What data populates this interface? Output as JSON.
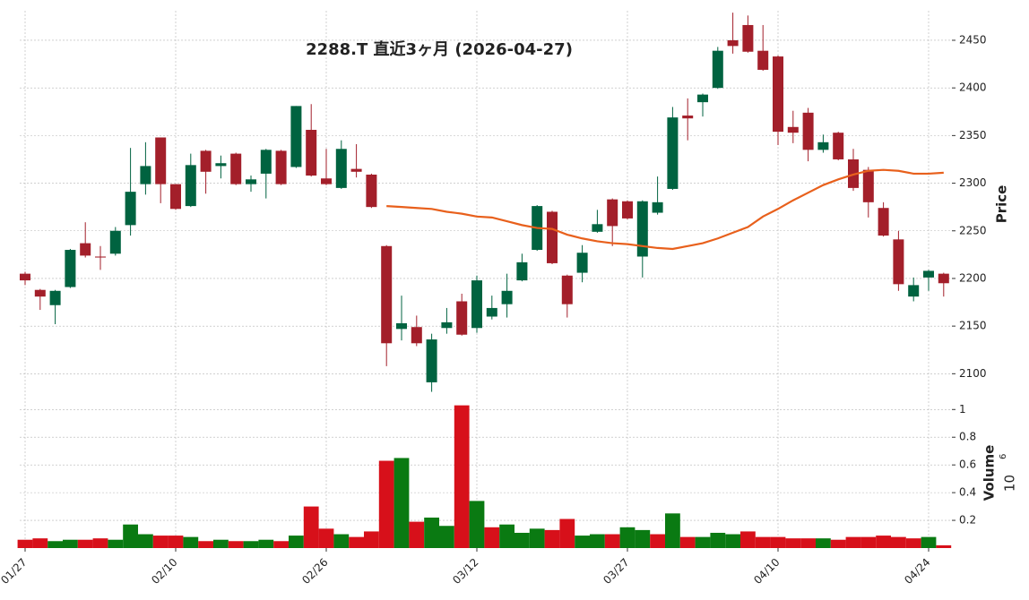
{
  "chart_data": {
    "type": "candlestick",
    "title": "2288.T 直近3ヶ月 (2026-04-27)",
    "categories": [
      "01/27",
      null,
      null,
      null,
      null,
      null,
      null,
      null,
      null,
      null,
      "02/10",
      null,
      null,
      null,
      null,
      null,
      null,
      null,
      null,
      null,
      "02/26",
      null,
      null,
      null,
      null,
      null,
      null,
      null,
      null,
      null,
      "03/12",
      null,
      null,
      null,
      null,
      null,
      null,
      null,
      null,
      null,
      "03/27",
      null,
      null,
      null,
      null,
      null,
      null,
      null,
      null,
      null,
      "04/10",
      null,
      null,
      null,
      null,
      null,
      null,
      null,
      null,
      null,
      "04/24",
      null
    ],
    "open": [
      2205,
      2188,
      2172,
      2191,
      2237,
      2223,
      2226,
      2256,
      2299,
      2348,
      2299,
      2276,
      2334,
      2318,
      2331,
      2299,
      2310,
      2334,
      2317,
      2356,
      2305,
      2295,
      2315,
      2309,
      2234,
      2147,
      2149,
      2091,
      2148,
      2176,
      2148,
      2160,
      2173,
      2198,
      2230,
      2270,
      2203,
      2206,
      2249,
      2283,
      2281,
      2223,
      2269,
      2294,
      2371,
      2385,
      2400,
      2450,
      2466,
      2439,
      2433,
      2359,
      2374,
      2335,
      2353,
      2325,
      2314,
      2274,
      2241,
      2181,
      2201,
      2205
    ],
    "high": [
      2207,
      2189,
      2188,
      2231,
      2259,
      2234,
      2254,
      2337,
      2343,
      2348,
      2299,
      2331,
      2335,
      2329,
      2332,
      2308,
      2336,
      2335,
      2381,
      2383,
      2336,
      2345,
      2341,
      2310,
      2235,
      2182,
      2161,
      2142,
      2169,
      2184,
      2203,
      2182,
      2205,
      2226,
      2277,
      2271,
      2204,
      2235,
      2272,
      2284,
      2282,
      2282,
      2307,
      2380,
      2389,
      2394,
      2443,
      2479,
      2476,
      2466,
      2434,
      2376,
      2379,
      2351,
      2354,
      2336,
      2317,
      2280,
      2250,
      2201,
      2209,
      2206
    ],
    "low": [
      2193,
      2167,
      2152,
      2190,
      2222,
      2209,
      2224,
      2245,
      2288,
      2279,
      2272,
      2275,
      2289,
      2305,
      2298,
      2291,
      2284,
      2298,
      2316,
      2307,
      2298,
      2294,
      2306,
      2274,
      2108,
      2135,
      2129,
      2081,
      2142,
      2140,
      2143,
      2157,
      2159,
      2197,
      2229,
      2215,
      2159,
      2196,
      2248,
      2234,
      2262,
      2201,
      2267,
      2293,
      2345,
      2370,
      2399,
      2436,
      2437,
      2418,
      2340,
      2342,
      2323,
      2332,
      2324,
      2292,
      2264,
      2244,
      2187,
      2176,
      2187,
      2181
    ],
    "close": [
      2198,
      2181,
      2187,
      2230,
      2224,
      2222,
      2250,
      2291,
      2318,
      2299,
      2273,
      2319,
      2312,
      2321,
      2299,
      2304,
      2335,
      2299,
      2381,
      2308,
      2299,
      2336,
      2312,
      2275,
      2132,
      2153,
      2132,
      2136,
      2154,
      2141,
      2198,
      2169,
      2187,
      2217,
      2276,
      2216,
      2173,
      2227,
      2257,
      2255,
      2263,
      2281,
      2280,
      2369,
      2368,
      2393,
      2439,
      2444,
      2438,
      2419,
      2354,
      2353,
      2335,
      2343,
      2325,
      2295,
      2280,
      2245,
      2194,
      2193,
      2208,
      2195
    ],
    "up_color": "#006340",
    "down_color": "#a31f2a",
    "ylabel": "Price",
    "ylim": [
      2074,
      2481
    ],
    "yticks": [
      2100,
      2150,
      2200,
      2250,
      2300,
      2350,
      2400,
      2450
    ],
    "moving_average": {
      "color": "#e8601c",
      "values": [
        null,
        null,
        null,
        null,
        null,
        null,
        null,
        null,
        null,
        null,
        null,
        null,
        null,
        null,
        null,
        null,
        null,
        null,
        null,
        null,
        null,
        null,
        null,
        null,
        2276,
        2275,
        2274,
        2273,
        2270,
        2268,
        2265,
        2264,
        2260,
        2256,
        2253,
        2252,
        2246,
        2242,
        2239,
        2237,
        2236,
        2234,
        2232,
        2231,
        2234,
        2237,
        2242,
        2248,
        2254,
        2265,
        2273,
        2282,
        2290,
        2298,
        2304,
        2309,
        2313,
        2314,
        2313,
        2310,
        2310,
        2311
      ]
    },
    "volume": {
      "label": "Volume",
      "scale_base": 10,
      "scale_exponent": 6,
      "up_color": "#0a7a12",
      "down_color": "#d7101a",
      "values": [
        0.06,
        0.07,
        0.05,
        0.06,
        0.06,
        0.07,
        0.06,
        0.17,
        0.1,
        0.09,
        0.09,
        0.08,
        0.05,
        0.06,
        0.05,
        0.05,
        0.06,
        0.05,
        0.09,
        0.3,
        0.14,
        0.1,
        0.08,
        0.12,
        0.63,
        0.65,
        0.19,
        0.22,
        0.16,
        1.03,
        0.34,
        0.15,
        0.17,
        0.11,
        0.14,
        0.13,
        0.21,
        0.09,
        0.1,
        0.1,
        0.15,
        0.13,
        0.1,
        0.25,
        0.08,
        0.08,
        0.11,
        0.1,
        0.12,
        0.08,
        0.08,
        0.07,
        0.07,
        0.07,
        0.06,
        0.08,
        0.08,
        0.09,
        0.08,
        0.07,
        0.08,
        0.02
      ],
      "ylim": [
        0,
        1.06
      ],
      "yticks": [
        0.2,
        0.4,
        0.6,
        0.8,
        1.0
      ]
    },
    "grid": true
  }
}
